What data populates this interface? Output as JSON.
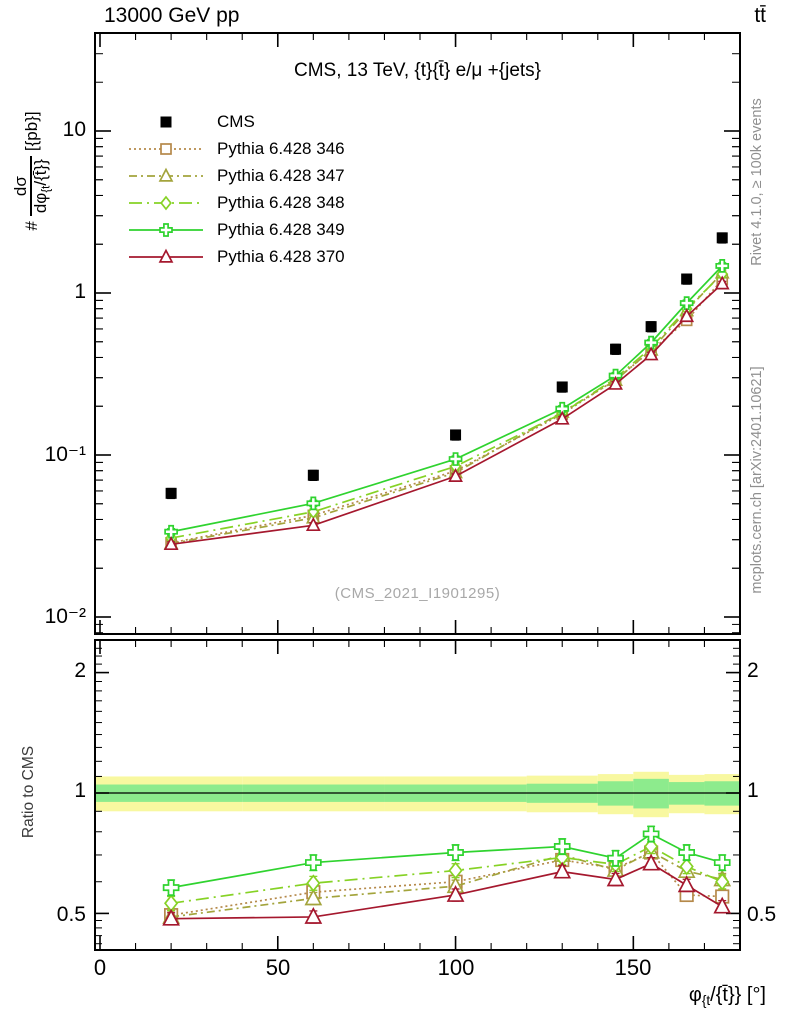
{
  "header": {
    "beam": "13000 GeV pp",
    "process": "tt̄"
  },
  "side_notes": {
    "right_top": "Rivet 4.1.0, ≥ 100k events",
    "right_bottom": "mcplots.cern.ch [arXiv:2401.10621]"
  },
  "main_panel": {
    "title": "CMS, 13 TeV, {t}{t̄} e/μ +{jets}",
    "watermark": "(CMS_2021_I1901295)",
    "ylabel": {
      "prefix": "#",
      "numerator": "dσ",
      "den_main": "dφ",
      "den_sub": "{t",
      "den_rest": "/{t̄}}",
      "suffix": "[{pb}]"
    },
    "yticks": [
      "10",
      "1",
      "10⁻¹",
      "10⁻²"
    ]
  },
  "ratio_panel": {
    "ylabel": "Ratio to CMS",
    "yticks": [
      "2",
      "1",
      "0.5"
    ]
  },
  "xaxis": {
    "ticks": [
      "0",
      "50",
      "100",
      "150"
    ],
    "label_main": "φ",
    "label_sub": "{t",
    "label_rest": "/{t̄}} [°]"
  },
  "chart_data": {
    "type": "line",
    "title": "CMS, 13 TeV, {t}{t̄} e/μ +{jets}",
    "xlabel": "φ_{t}/{t̄}} [°]",
    "ylabel_main": "# dσ/dφ_{t}/{t̄}} [{pb}]",
    "ylabel_ratio": "Ratio to CMS",
    "yscale": "log",
    "grid": false,
    "legend_position": "top-left",
    "x": [
      20,
      60,
      100,
      130,
      145,
      155,
      165,
      175
    ],
    "bin_edges": [
      0,
      40,
      80,
      120,
      140,
      150,
      160,
      170,
      180
    ],
    "xlim": [
      -1.5,
      180
    ],
    "main_ylim": [
      0.0079,
      40
    ],
    "ratio_ylim": [
      0.405,
      2.41
    ],
    "series": [
      {
        "name": "CMS",
        "color": "#000000",
        "marker": "square-filled",
        "line": "none",
        "err_rel": 0.07,
        "main": [
          0.058,
          0.075,
          0.133,
          0.263,
          0.45,
          0.62,
          1.22,
          2.19
        ],
        "ratio": null
      },
      {
        "name": "Pythia 6.428 346",
        "color": "#b5894a",
        "marker": "square-open",
        "line": "dotted",
        "err_rel": 0.035,
        "main": [
          0.0287,
          0.0424,
          0.0798,
          0.179,
          0.292,
          0.44,
          0.678,
          1.21
        ],
        "ratio": [
          0.495,
          0.565,
          0.6,
          0.68,
          0.648,
          0.71,
          0.556,
          0.551
        ]
      },
      {
        "name": "Pythia 6.428 347",
        "color": "#a3a43c",
        "marker": "triangle-open",
        "line": "dashdot",
        "err_rel": 0.035,
        "main": [
          0.0284,
          0.0409,
          0.0778,
          0.184,
          0.289,
          0.445,
          0.778,
          1.33
        ],
        "ratio": [
          0.49,
          0.545,
          0.585,
          0.7,
          0.642,
          0.713,
          0.638,
          0.608
        ]
      },
      {
        "name": "Pythia 6.428 348",
        "color": "#86d225",
        "marker": "diamond-open",
        "line": "dashdot-long",
        "err_rel": 0.04,
        "main": [
          0.0307,
          0.0446,
          0.0851,
          0.181,
          0.298,
          0.459,
          0.799,
          1.31
        ],
        "ratio": [
          0.53,
          0.595,
          0.64,
          0.69,
          0.663,
          0.735,
          0.655,
          0.6
        ]
      },
      {
        "name": "Pythia 6.428 349",
        "color": "#2fd32f",
        "marker": "cross-open",
        "line": "solid",
        "err_rel": 0.045,
        "main": [
          0.0336,
          0.0503,
          0.0944,
          0.193,
          0.309,
          0.494,
          0.866,
          1.47
        ],
        "ratio": [
          0.58,
          0.67,
          0.71,
          0.735,
          0.687,
          0.79,
          0.71,
          0.67
        ]
      },
      {
        "name": "Pythia 6.428 370",
        "color": "#a5182e",
        "marker": "triangle-open",
        "line": "solid",
        "err_rel": 0.035,
        "main": [
          0.0281,
          0.0368,
          0.0739,
          0.167,
          0.274,
          0.416,
          0.717,
          1.14
        ],
        "ratio": [
          0.485,
          0.49,
          0.556,
          0.636,
          0.608,
          0.666,
          0.588,
          0.52
        ]
      }
    ],
    "bands": {
      "yellow": {
        "color": "#f8f8a0",
        "ranges": [
          [
            0.9,
            1.1
          ],
          [
            0.9,
            1.1
          ],
          [
            0.9,
            1.1
          ],
          [
            0.895,
            1.105
          ],
          [
            0.885,
            1.115
          ],
          [
            0.87,
            1.13
          ],
          [
            0.89,
            1.11
          ],
          [
            0.885,
            1.115
          ]
        ]
      },
      "green": {
        "color": "#8deb8d",
        "ranges": [
          [
            0.95,
            1.05
          ],
          [
            0.95,
            1.05
          ],
          [
            0.95,
            1.05
          ],
          [
            0.945,
            1.055
          ],
          [
            0.93,
            1.07
          ],
          [
            0.915,
            1.085
          ],
          [
            0.935,
            1.065
          ],
          [
            0.93,
            1.07
          ]
        ]
      }
    }
  }
}
